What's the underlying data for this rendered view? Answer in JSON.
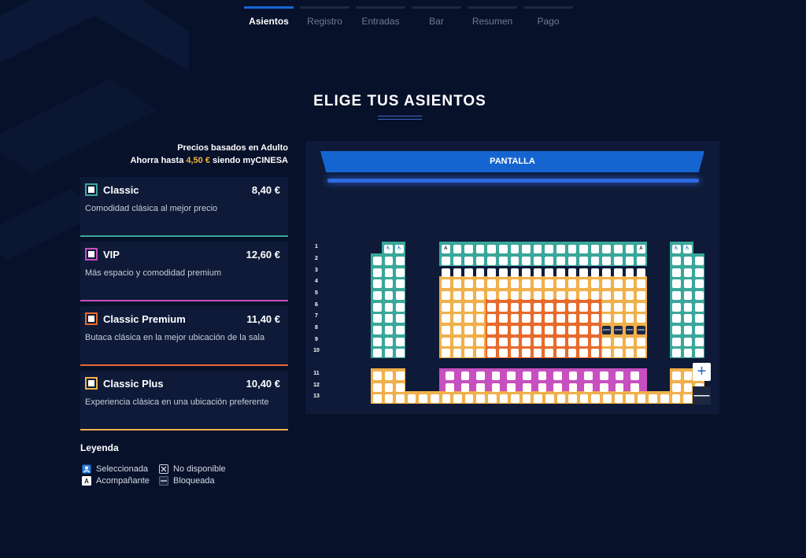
{
  "steps": [
    {
      "label": "Asientos",
      "active": true
    },
    {
      "label": "Registro",
      "active": false
    },
    {
      "label": "Entradas",
      "active": false
    },
    {
      "label": "Bar",
      "active": false
    },
    {
      "label": "Resumen",
      "active": false
    },
    {
      "label": "Pago",
      "active": false
    }
  ],
  "page_title": "ELIGE TUS ASIENTOS",
  "prices_note": {
    "line1": "Precios basados en Adulto",
    "line2_prefix": "Ahorra hasta",
    "line2_amount": "4,50 €",
    "line2_suffix": "siendo myCINESA"
  },
  "tiers": [
    {
      "name": "Classic",
      "price": "8,40 €",
      "desc": "Comodidad clásica al mejor precio",
      "color": "#3aa79a"
    },
    {
      "name": "VIP",
      "price": "12,60 €",
      "desc": "Más espacio y comodidad premium",
      "color": "#c84fc0"
    },
    {
      "name": "Classic Premium",
      "price": "11,40 €",
      "desc": "Butaca clásica en la mejor ubicación de la sala",
      "color": "#e86a2c"
    },
    {
      "name": "Classic Plus",
      "price": "10,40 €",
      "desc": "Experiencia clásica en una ubicación preferente",
      "color": "#f0b04b"
    }
  ],
  "legend": {
    "title": "Leyenda",
    "items": [
      {
        "label": "Seleccionada",
        "icon": "selected-seat-icon"
      },
      {
        "label": "No disponible",
        "icon": "unavailable-seat-icon"
      },
      {
        "label": "Acompañante",
        "icon": "companion-seat-icon",
        "letter": "A"
      },
      {
        "label": "Bloqueada",
        "icon": "blocked-seat-icon"
      }
    ]
  },
  "seatmap": {
    "screen_label": "PANTALLA",
    "row_labels": [
      "1",
      "2",
      "3",
      "4",
      "5",
      "6",
      "7",
      "8",
      "9",
      "10",
      "11",
      "12",
      "13"
    ],
    "companion_letter": "A",
    "wheelchair_glyph": "♿",
    "zoom_in": "+",
    "zoom_out": "—"
  },
  "colors": {
    "classic": "#3aa79a",
    "vip": "#c84fc0",
    "premium": "#e86a2c",
    "plus": "#f0b04b",
    "accent": "#1565d0"
  }
}
